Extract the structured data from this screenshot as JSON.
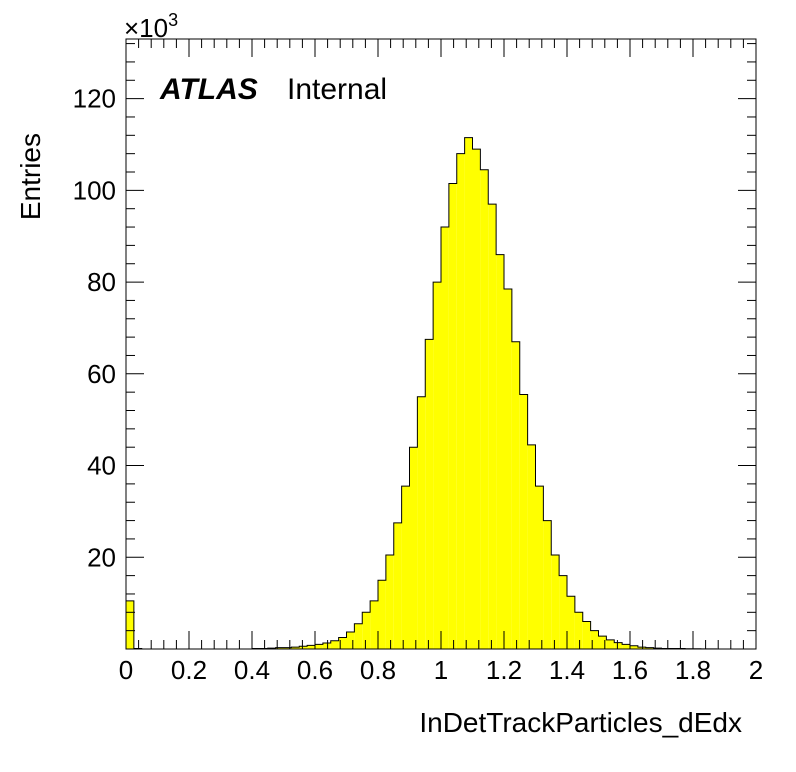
{
  "chart_data": {
    "type": "bar",
    "style": "histogram",
    "xlabel": "InDetTrackParticles_dEdx",
    "ylabel": "Entries",
    "xlim": [
      0,
      2
    ],
    "ylim": [
      0,
      133
    ],
    "y_multiplier_label": "×10",
    "y_multiplier_exponent": "3",
    "x_ticks": [
      "0",
      "0.2",
      "0.4",
      "0.6",
      "0.8",
      "1",
      "1.2",
      "1.4",
      "1.6",
      "1.8",
      "2"
    ],
    "y_ticks": [
      "20",
      "40",
      "60",
      "80",
      "100",
      "120"
    ],
    "fill_color": "#ffff00",
    "line_color": "#000000",
    "grid": false,
    "legend": "none",
    "bin_width": 0.025,
    "bins_start": 0,
    "values": [
      10.5,
      0.1,
      0,
      0,
      0,
      0,
      0,
      0,
      0,
      0,
      0,
      0,
      0,
      0,
      0,
      0,
      0.1,
      0.1,
      0.2,
      0.3,
      0.3,
      0.4,
      0.6,
      0.8,
      1.0,
      1.3,
      1.8,
      2.5,
      3.7,
      5.5,
      8.0,
      10.5,
      15.0,
      20.5,
      27.5,
      35.5,
      44.0,
      55.0,
      67.5,
      80.0,
      92.0,
      101.5,
      108.0,
      111.5,
      109.0,
      104.5,
      97.0,
      86.0,
      78.5,
      67.0,
      55.5,
      44.5,
      35.5,
      28.0,
      20.5,
      16.0,
      11.5,
      8.0,
      6.0,
      4.0,
      2.8,
      2.0,
      1.4,
      1.0,
      0.7,
      0.4,
      0.3,
      0.2,
      0.1,
      0.1,
      0.1,
      0.05,
      0.05,
      0.02,
      0.02,
      0.01,
      0.01,
      0,
      0,
      0
    ],
    "annotations": {
      "experiment": "ATLAS",
      "status": "Internal"
    }
  }
}
